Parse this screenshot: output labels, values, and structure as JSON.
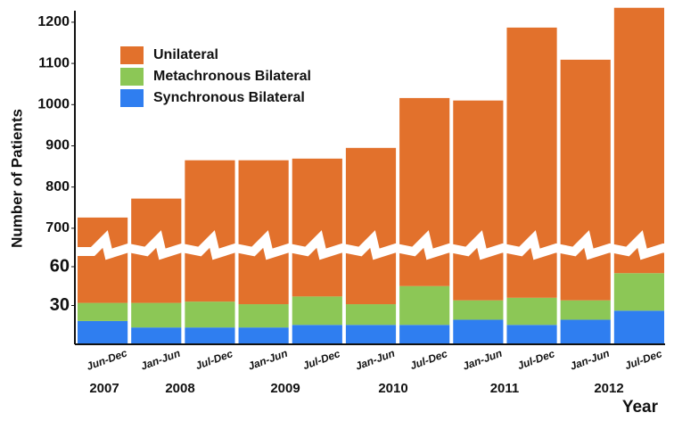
{
  "chart_data": {
    "type": "stacked_bar",
    "y_label": "Number of Patients",
    "x_label": "Year",
    "categories": [
      "Jun-Dec",
      "Jan-Jun",
      "Jul-Dec",
      "Jan-Jun",
      "Jul-Dec",
      "Jan-Jun",
      "Jul-Dec",
      "Jan-Jun",
      "Jul-Dec",
      "Jan-Jun",
      "Jul-Dec"
    ],
    "years": [
      "2007",
      "2008",
      "2009",
      "2010",
      "2011",
      "2012"
    ],
    "series": [
      {
        "name": "Synchronous Bilateral",
        "color": "#2f7ef0",
        "values": [
          18,
          13,
          13,
          13,
          15,
          15,
          15,
          19,
          15,
          19,
          26
        ]
      },
      {
        "name": "Metachronous Bilateral",
        "color": "#8cc756",
        "values": [
          14,
          19,
          20,
          18,
          22,
          16,
          30,
          15,
          21,
          15,
          29
        ]
      },
      {
        "name": "Unilateral",
        "color": "#e2712c",
        "values": [
          694,
          740,
          832,
          834,
          832,
          864,
          971,
          976,
          1151,
          1075,
          1180
        ]
      }
    ],
    "ylim": [
      0,
      1250
    ],
    "yticks": [
      30,
      60,
      700,
      800,
      900,
      1000,
      1100,
      1200
    ]
  }
}
